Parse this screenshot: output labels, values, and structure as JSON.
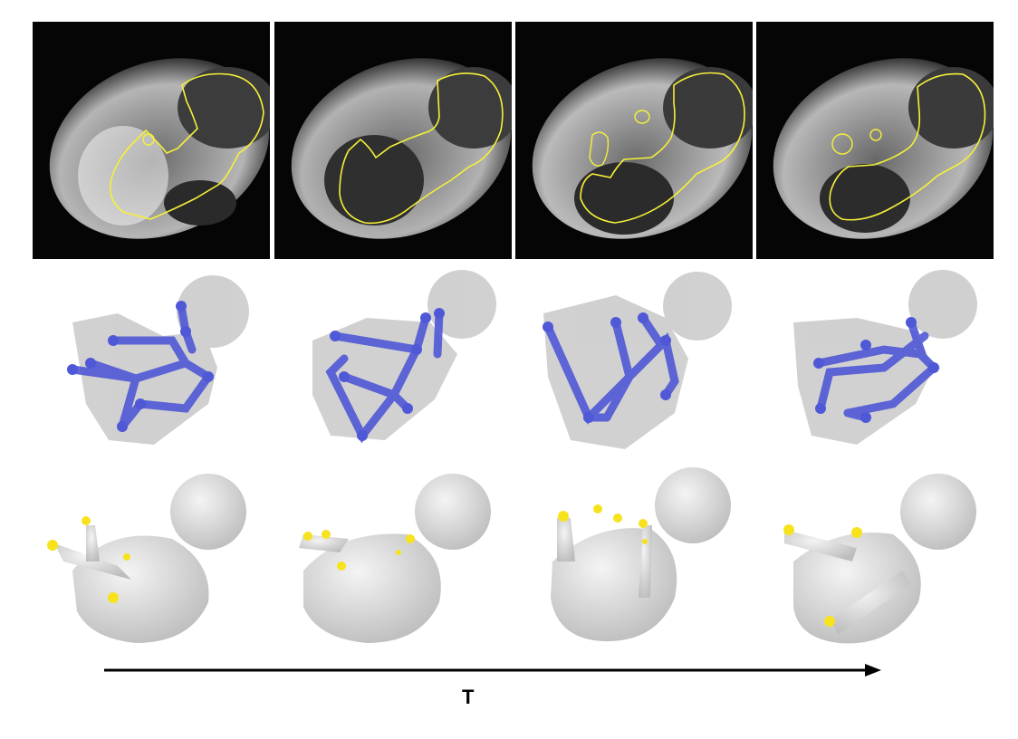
{
  "figure": {
    "time_axis_label": "T",
    "frame_count": 4,
    "rows": [
      "mri-with-segmentation-contour",
      "fetal-pose-skeleton",
      "fetal-body-mesh"
    ],
    "colors": {
      "contour": "#f5f03a",
      "skeleton": "#4f58d6",
      "keypoint": "#f7e21e",
      "mesh": "#d9d9d9",
      "volume": "#c8c8c8",
      "axis": "#000000"
    }
  }
}
